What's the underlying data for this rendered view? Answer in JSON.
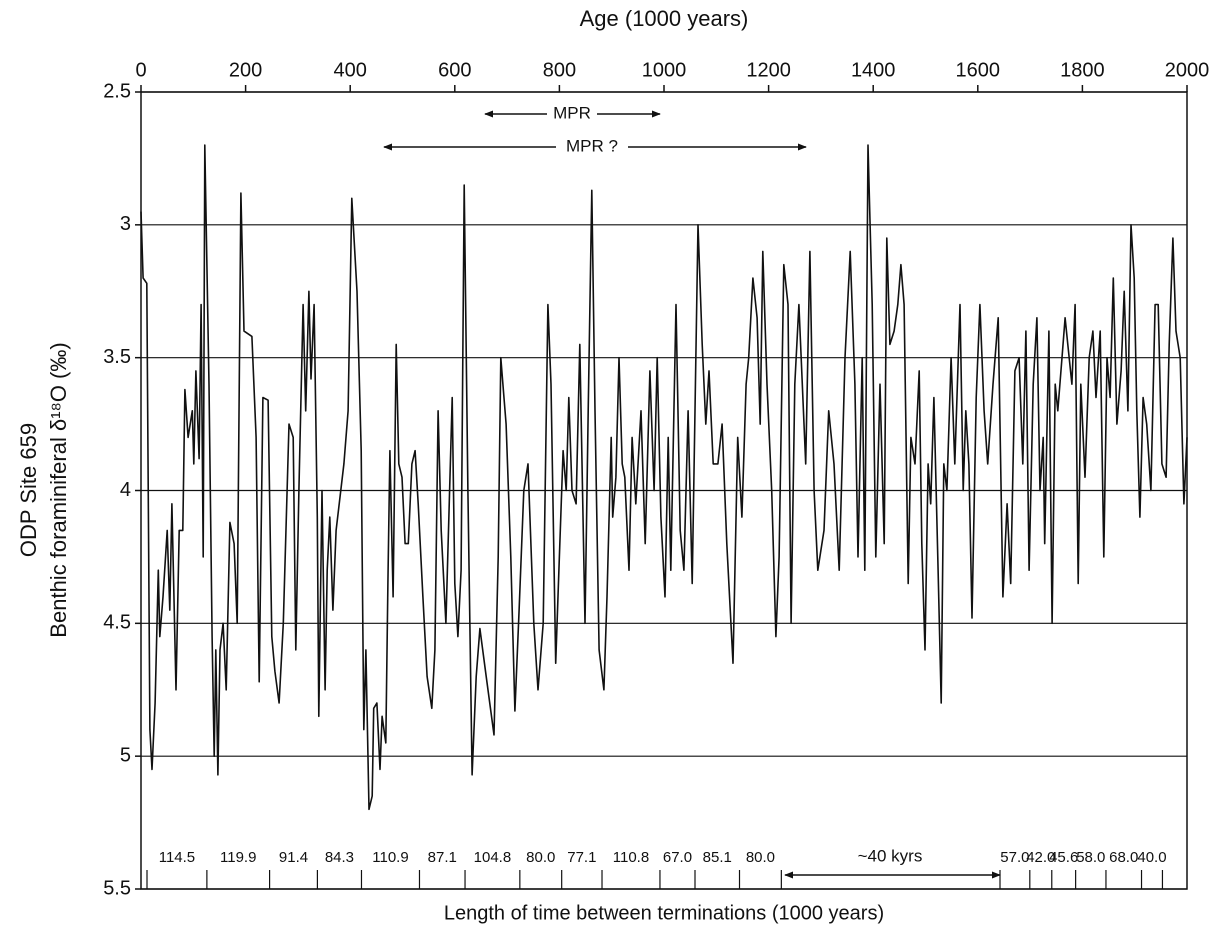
{
  "chart_data": {
    "type": "line",
    "x_label": "Age (1000 years)",
    "y_label_lines": [
      "ODP Site 659",
      "Benthic foraminiferal δ¹⁸O (‰)"
    ],
    "bottom_label": "Length of time between terminations (1000 years)",
    "annotations": {
      "mpr": "MPR",
      "mpr_uncertain": "MPR ?",
      "forty_kyrs": "~40 kyrs"
    },
    "xlim": [
      0,
      2000
    ],
    "xticks": [
      0,
      200,
      400,
      600,
      800,
      1000,
      1200,
      1400,
      1600,
      1800,
      2000
    ],
    "ylim": [
      2.5,
      5.5
    ],
    "yticks": [
      2.5,
      3,
      3.5,
      4,
      4.5,
      5,
      5.5
    ],
    "y_inverted": true,
    "grid": true,
    "x": [
      0,
      4,
      11,
      17,
      21,
      27,
      33,
      36,
      42,
      50,
      55,
      59,
      67,
      73,
      80,
      84,
      90,
      98,
      101,
      105,
      111,
      115,
      119,
      122,
      130,
      136,
      140,
      143,
      147,
      151,
      157,
      163,
      170,
      178,
      184,
      191,
      197,
      212,
      220,
      226,
      233,
      243,
      250,
      256,
      264,
      272,
      283,
      291,
      296,
      302,
      310,
      315,
      321,
      325,
      331,
      337,
      340,
      346,
      352,
      356,
      361,
      367,
      373,
      388,
      396,
      403,
      413,
      421,
      426,
      430,
      436,
      442,
      445,
      451,
      457,
      461,
      468,
      472,
      476,
      482,
      488,
      493,
      499,
      505,
      511,
      518,
      524,
      530,
      539,
      547,
      556,
      562,
      568,
      574,
      583,
      595,
      600,
      606,
      612,
      618,
      625,
      633,
      641,
      648,
      660,
      675,
      683,
      688,
      692,
      698,
      707,
      715,
      723,
      732,
      740,
      751,
      759,
      769,
      778,
      784,
      793,
      799,
      807,
      813,
      818,
      824,
      832,
      839,
      849,
      855,
      862,
      868,
      876,
      885,
      891,
      899,
      902,
      908,
      914,
      920,
      925,
      933,
      939,
      946,
      956,
      964,
      973,
      981,
      987,
      994,
      1002,
      1008,
      1013,
      1023,
      1031,
      1038,
      1046,
      1054,
      1065,
      1073,
      1080,
      1086,
      1094,
      1103,
      1111,
      1120,
      1132,
      1141,
      1149,
      1157,
      1162,
      1170,
      1178,
      1184,
      1189,
      1197,
      1206,
      1214,
      1220,
      1229,
      1237,
      1243,
      1250,
      1258,
      1271,
      1279,
      1287,
      1294,
      1306,
      1315,
      1325,
      1335,
      1346,
      1356,
      1365,
      1371,
      1379,
      1384,
      1390,
      1398,
      1405,
      1413,
      1421,
      1426,
      1432,
      1440,
      1447,
      1453,
      1459,
      1467,
      1472,
      1480,
      1488,
      1493,
      1499,
      1505,
      1510,
      1516,
      1524,
      1530,
      1535,
      1541,
      1549,
      1556,
      1566,
      1572,
      1577,
      1583,
      1589,
      1597,
      1604,
      1612,
      1619,
      1629,
      1639,
      1648,
      1656,
      1663,
      1671,
      1679,
      1686,
      1692,
      1698,
      1706,
      1713,
      1719,
      1725,
      1728,
      1736,
      1742,
      1748,
      1753,
      1761,
      1767,
      1772,
      1780,
      1786,
      1792,
      1797,
      1805,
      1813,
      1820,
      1826,
      1834,
      1841,
      1847,
      1853,
      1859,
      1866,
      1874,
      1880,
      1887,
      1893,
      1899,
      1904,
      1910,
      1916,
      1923,
      1931,
      1939,
      1945,
      1952,
      1960,
      1966,
      1973,
      1979,
      1987,
      1994,
      2000
    ],
    "series": [
      {
        "color": "#111111",
        "values": [
          2.95,
          3.2,
          3.22,
          4.9,
          5.05,
          4.8,
          4.3,
          4.55,
          4.4,
          4.15,
          4.45,
          4.05,
          4.75,
          4.15,
          4.15,
          3.62,
          3.8,
          3.7,
          3.9,
          3.55,
          3.88,
          3.3,
          4.25,
          2.7,
          3.6,
          4.55,
          5.0,
          4.6,
          5.07,
          4.6,
          4.5,
          4.75,
          4.12,
          4.2,
          4.5,
          2.88,
          3.4,
          3.42,
          3.8,
          4.72,
          3.65,
          3.66,
          4.55,
          4.68,
          4.8,
          4.5,
          3.75,
          3.8,
          4.6,
          4.0,
          3.3,
          3.7,
          3.25,
          3.58,
          3.3,
          4.1,
          4.85,
          4.0,
          4.75,
          4.3,
          4.1,
          4.45,
          4.15,
          3.9,
          3.7,
          2.9,
          3.25,
          3.85,
          4.9,
          4.6,
          5.2,
          5.15,
          4.82,
          4.8,
          5.05,
          4.85,
          4.95,
          4.35,
          3.85,
          4.4,
          3.45,
          3.9,
          3.95,
          4.2,
          4.2,
          3.9,
          3.85,
          4.05,
          4.4,
          4.7,
          4.82,
          4.6,
          3.7,
          4.15,
          4.5,
          3.65,
          4.35,
          4.55,
          4.3,
          2.85,
          4.0,
          5.07,
          4.7,
          4.52,
          4.7,
          4.92,
          4.25,
          3.5,
          3.6,
          3.75,
          4.25,
          4.83,
          4.45,
          4.0,
          3.9,
          4.5,
          4.75,
          4.5,
          3.3,
          3.6,
          4.65,
          4.3,
          3.85,
          4.0,
          3.65,
          4.0,
          4.05,
          3.45,
          4.5,
          3.7,
          2.87,
          3.7,
          4.6,
          4.75,
          4.4,
          3.8,
          4.1,
          3.95,
          3.5,
          3.9,
          3.95,
          4.3,
          3.8,
          4.05,
          3.7,
          4.2,
          3.55,
          4.0,
          3.5,
          4.1,
          4.4,
          3.8,
          4.3,
          3.3,
          4.15,
          4.3,
          3.7,
          4.35,
          3.0,
          3.45,
          3.75,
          3.55,
          3.9,
          3.9,
          3.75,
          4.2,
          4.65,
          3.8,
          4.1,
          3.6,
          3.5,
          3.2,
          3.35,
          3.75,
          3.1,
          3.6,
          4.0,
          4.55,
          4.25,
          3.15,
          3.3,
          4.5,
          3.6,
          3.3,
          3.9,
          3.1,
          4.0,
          4.3,
          4.15,
          3.7,
          3.9,
          4.3,
          3.5,
          3.1,
          3.6,
          4.25,
          3.5,
          4.3,
          2.7,
          3.3,
          4.25,
          3.6,
          4.2,
          3.05,
          3.45,
          3.4,
          3.3,
          3.15,
          3.3,
          4.35,
          3.8,
          3.9,
          3.55,
          4.2,
          4.6,
          3.9,
          4.05,
          3.65,
          4.3,
          4.8,
          3.9,
          4.0,
          3.5,
          3.9,
          3.3,
          4.0,
          3.7,
          3.9,
          4.48,
          3.65,
          3.3,
          3.7,
          3.9,
          3.6,
          3.35,
          4.4,
          4.05,
          4.35,
          3.55,
          3.5,
          3.9,
          3.4,
          4.3,
          3.6,
          3.35,
          4.0,
          3.8,
          4.2,
          3.4,
          4.5,
          3.6,
          3.7,
          3.5,
          3.35,
          3.45,
          3.6,
          3.3,
          4.35,
          3.6,
          3.95,
          3.5,
          3.4,
          3.65,
          3.4,
          4.25,
          3.5,
          3.65,
          3.2,
          3.75,
          3.55,
          3.25,
          3.7,
          3.0,
          3.2,
          3.7,
          4.1,
          3.65,
          3.75,
          4.0,
          3.3,
          3.3,
          3.9,
          3.95,
          3.45,
          3.05,
          3.4,
          3.5,
          4.05,
          3.8
        ]
      }
    ],
    "termination_groups": [
      {
        "values": [
          114.5,
          119.9,
          91.4,
          84.3,
          110.9,
          87.1,
          104.8,
          80.0,
          77.1,
          110.8,
          67.0,
          85.1,
          80.0
        ],
        "value_labels": [
          "114.5",
          "119.9",
          "91.4",
          "84.3",
          "110.9",
          "87.1",
          "104.8",
          "80.0",
          "77.1",
          "110.8",
          "67.0",
          "85.1",
          "80.0"
        ]
      },
      {
        "values": [
          57.0,
          42.0,
          45.6,
          58.0,
          68.0,
          40.0
        ],
        "value_labels": [
          "57.0",
          "42.0",
          "45.6",
          "58.0",
          "68.0",
          "40.0"
        ]
      }
    ]
  }
}
